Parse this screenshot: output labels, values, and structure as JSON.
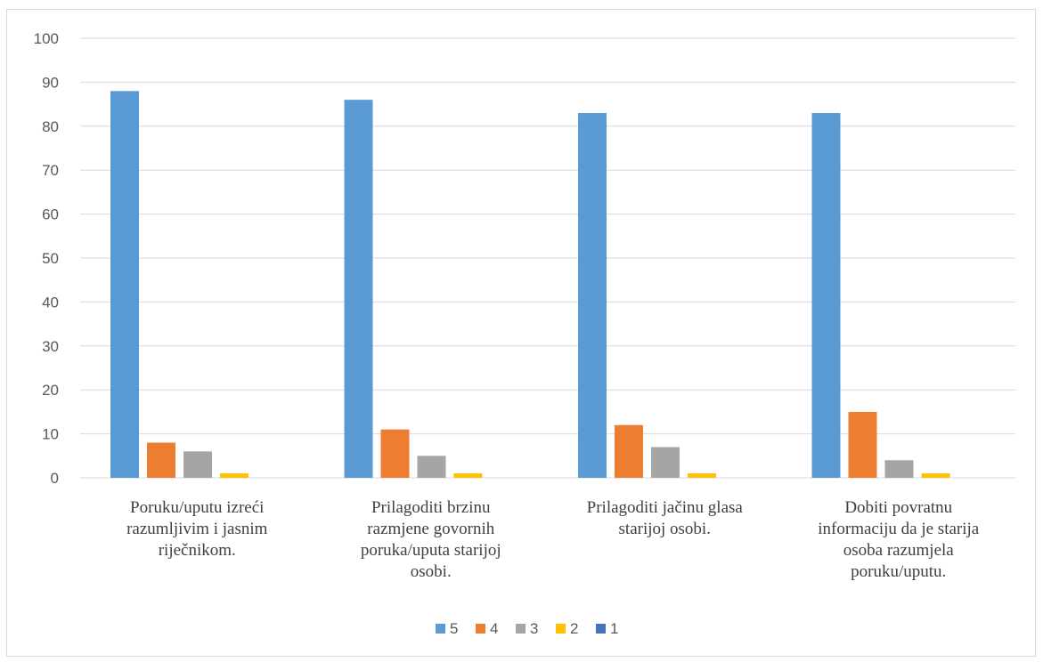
{
  "chart_data": {
    "type": "bar",
    "categories": [
      [
        "Poruku/uputu izreći",
        "razumljivim i jasnim",
        "riječnikom."
      ],
      [
        "Prilagoditi brzinu",
        "razmjene govornih",
        "poruka/uputa starijoj",
        "osobi."
      ],
      [
        "Prilagoditi jačinu glasa",
        "starijoj osobi."
      ],
      [
        "Dobiti povratnu",
        "informaciju da je starija",
        "osoba razumjela",
        "poruku/uputu."
      ]
    ],
    "series": [
      {
        "name": "5",
        "color": "#5b9bd5",
        "values": [
          88,
          86,
          83,
          83
        ]
      },
      {
        "name": "4",
        "color": "#ed7d31",
        "values": [
          8,
          11,
          12,
          15
        ]
      },
      {
        "name": "3",
        "color": "#a5a5a5",
        "values": [
          6,
          5,
          7,
          4
        ]
      },
      {
        "name": "2",
        "color": "#ffc000",
        "values": [
          1,
          1,
          1,
          1
        ]
      },
      {
        "name": "1",
        "color": "#4472c4",
        "values": [
          0,
          0,
          0,
          0
        ]
      }
    ],
    "ylim": [
      0,
      100
    ],
    "yticks": [
      0,
      10,
      20,
      30,
      40,
      50,
      60,
      70,
      80,
      90,
      100
    ],
    "grid": true,
    "legend_position": "bottom"
  }
}
